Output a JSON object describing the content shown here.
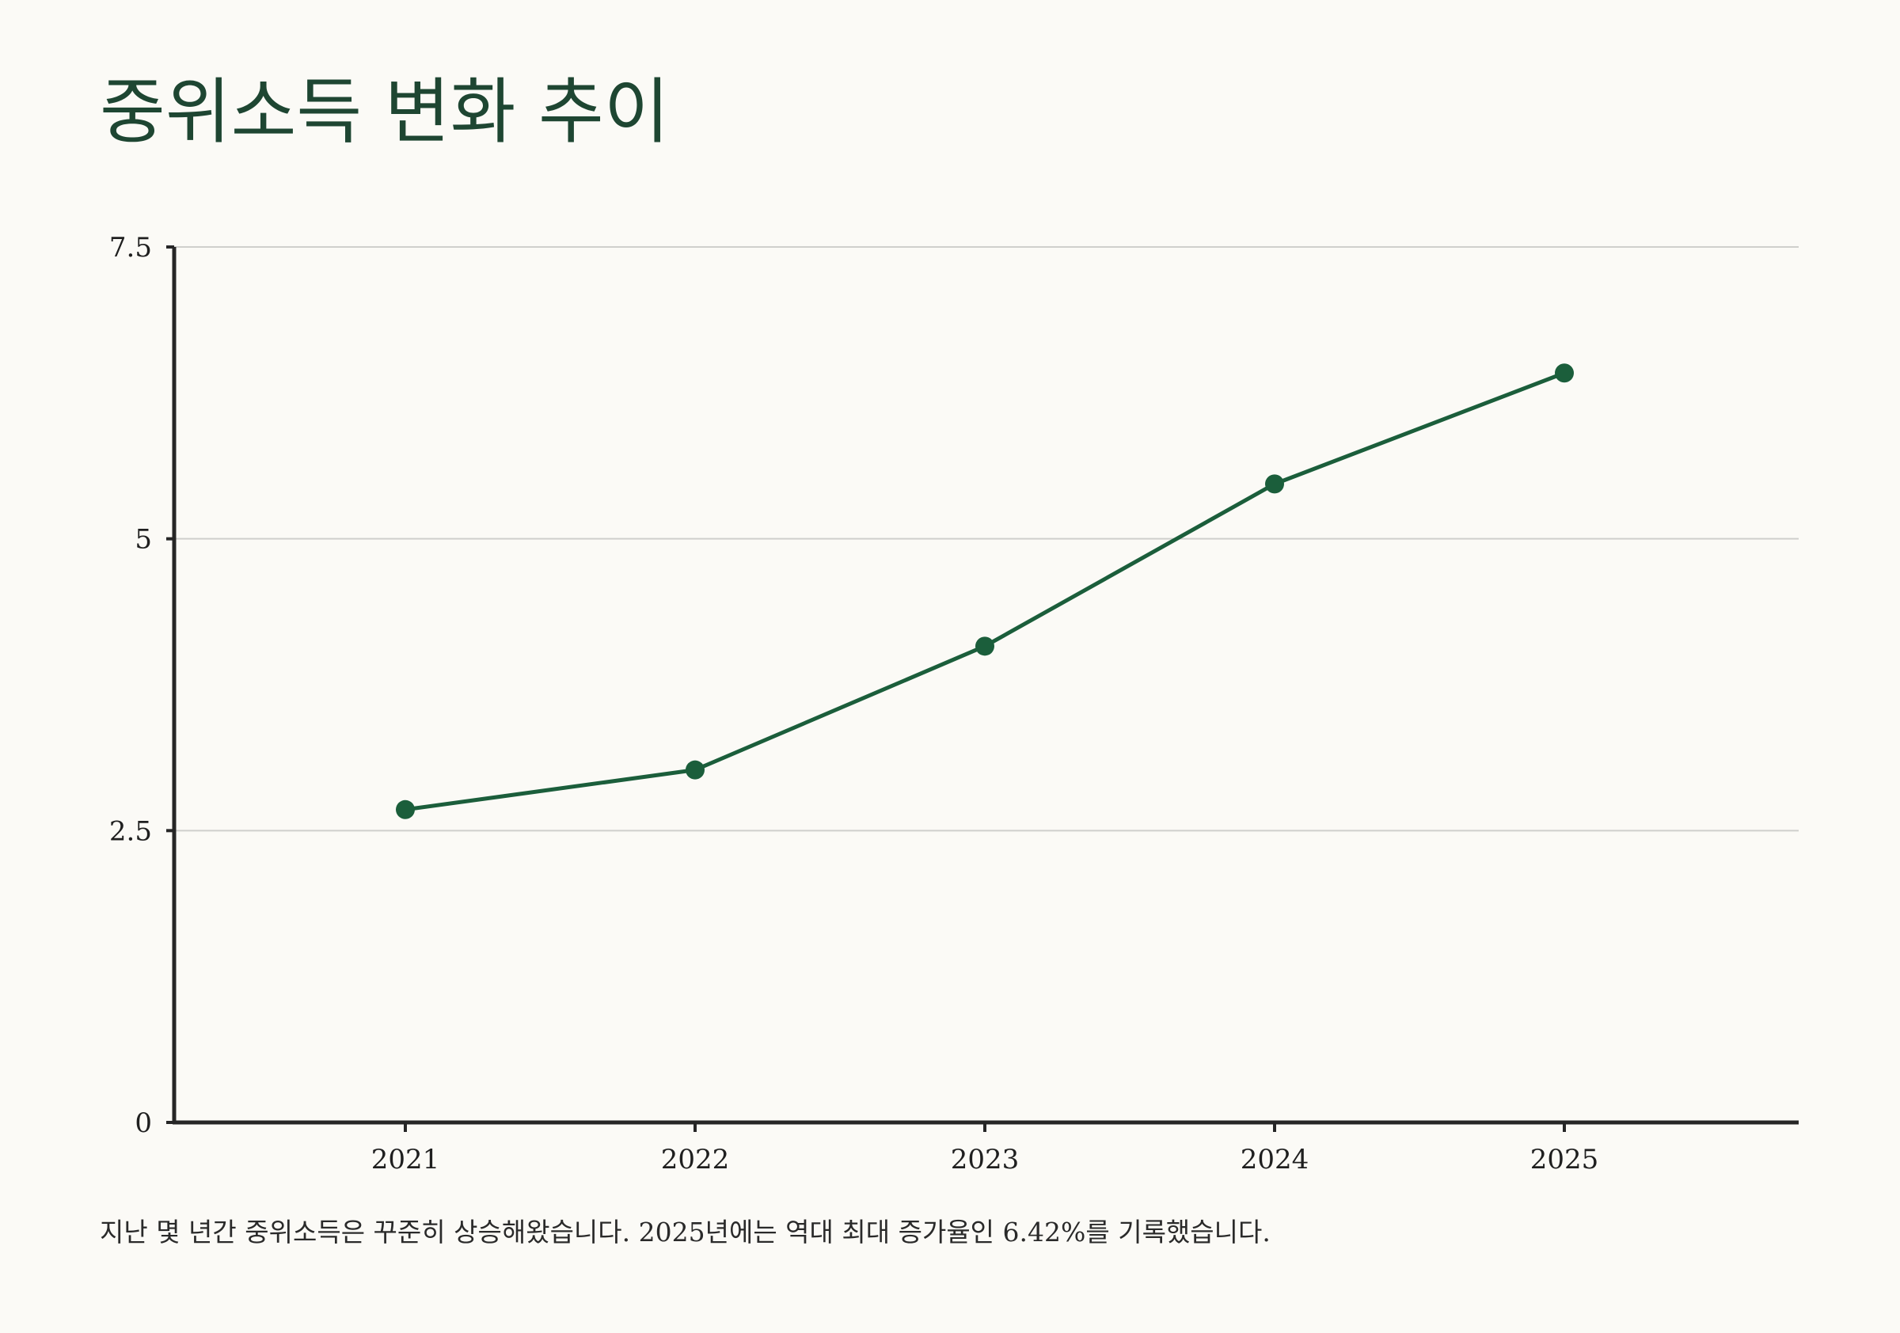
{
  "colors": {
    "background": "#fbfaf6",
    "title": "#1e4632",
    "series": "#1b5e3b",
    "axis": "#262626",
    "grid": "#cfcfcc",
    "text": "#2a2a2a"
  },
  "chart_data": {
    "type": "line",
    "title": "중위소득 변화 추이",
    "xlabel": "",
    "ylabel": "",
    "caption": "지난 몇 년간 중위소득은 꾸준히 상승해왔습니다. 2025년에는 역대 최대 증가율인 6.42%를 기록했습니다.",
    "x": [
      "2021",
      "2022",
      "2023",
      "2024",
      "2025"
    ],
    "series": [
      {
        "values": [
          2.68,
          3.02,
          4.08,
          5.47,
          6.42
        ]
      }
    ],
    "ylim": [
      0,
      7.5
    ],
    "yticks": [
      0,
      2.5,
      5,
      7.5
    ],
    "ytick_labels": [
      "0",
      "2.5",
      "5",
      "7.5"
    ],
    "grid": true,
    "legend": "none"
  }
}
